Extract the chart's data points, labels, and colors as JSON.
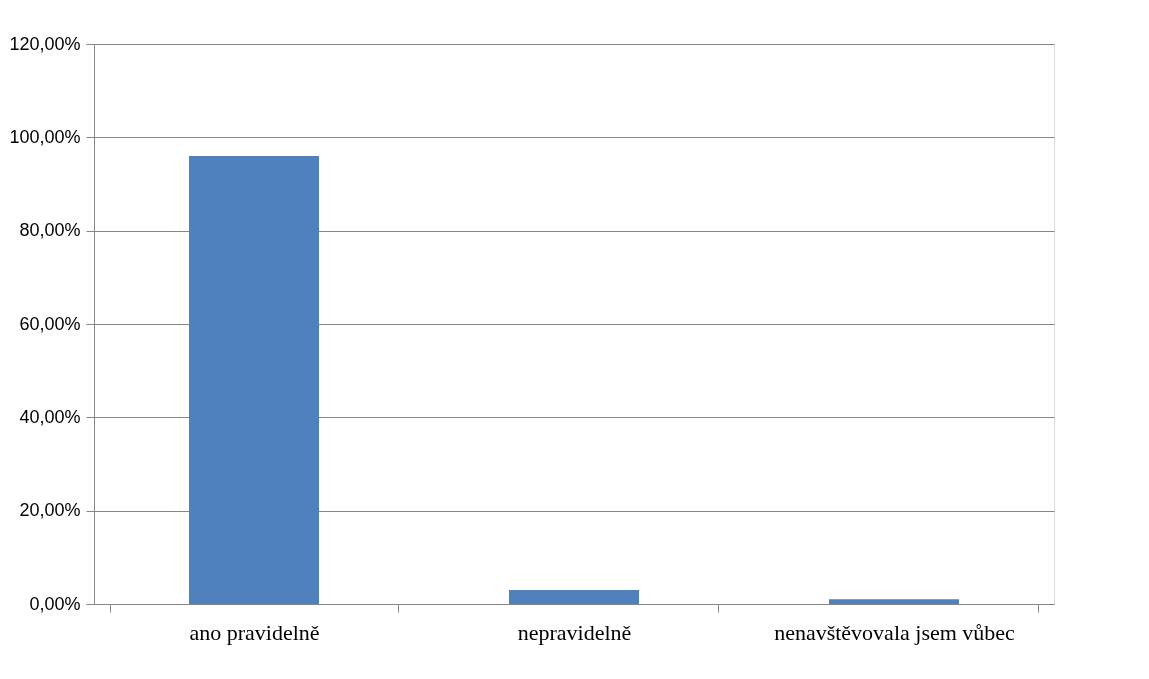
{
  "chart_data": {
    "type": "bar",
    "categories": [
      "ano pravidelně",
      "nepravidelně",
      "nenavštěvovala jsem vůbec"
    ],
    "values": [
      96,
      3,
      1
    ],
    "color": "#4f81bd",
    "ylim": [
      0,
      120
    ],
    "yticks": [
      {
        "value": 0,
        "label": "0,00%"
      },
      {
        "value": 20,
        "label": "20,00%"
      },
      {
        "value": 40,
        "label": "40,00%"
      },
      {
        "value": 60,
        "label": "60,00%"
      },
      {
        "value": 80,
        "label": "80,00%"
      },
      {
        "value": 100,
        "label": "100,00%"
      },
      {
        "value": 120,
        "label": "120,00%"
      }
    ],
    "grid": "y"
  }
}
